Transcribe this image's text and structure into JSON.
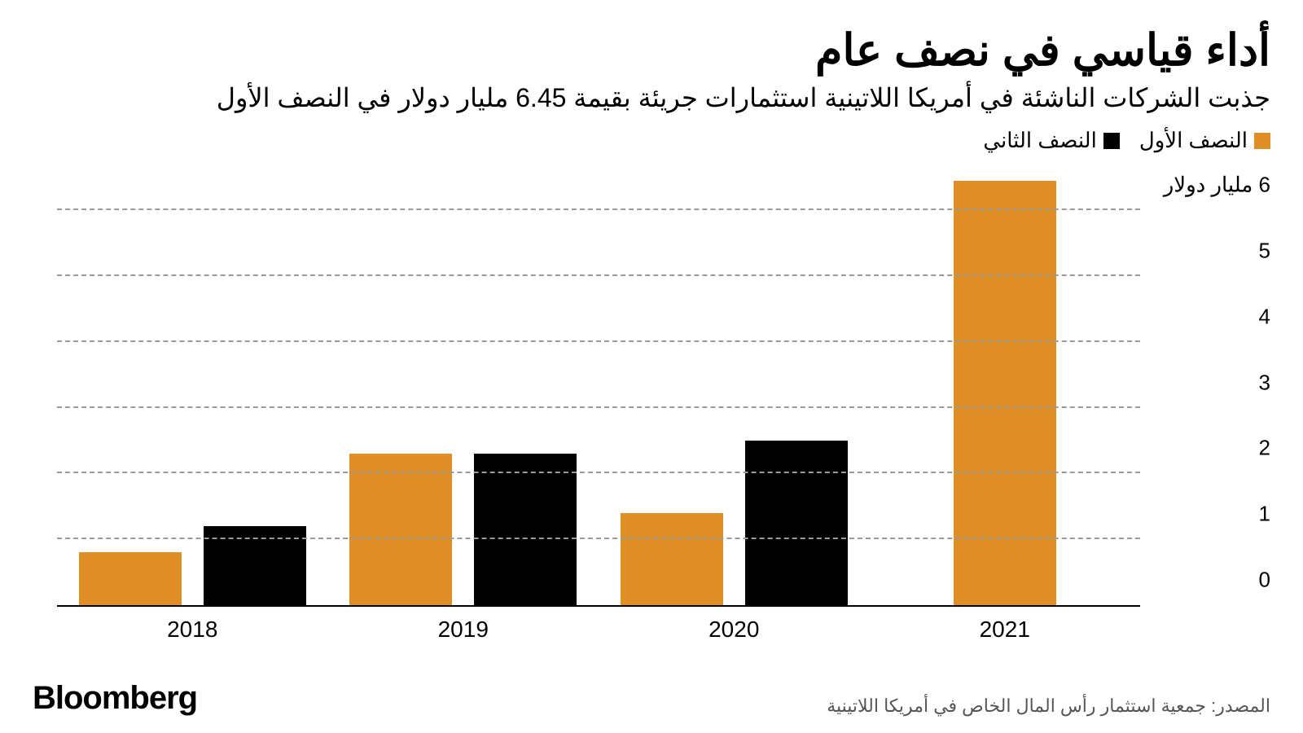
{
  "title": "أداء قياسي في نصف عام",
  "subtitle": "جذبت الشركات الناشئة في أمريكا اللاتينية استثمارات جريئة بقيمة 6.45 مليار دولار في النصف الأول",
  "legend": [
    {
      "label": "النصف الأول",
      "color": "#e08f27"
    },
    {
      "label": "النصف الثاني",
      "color": "#000000"
    }
  ],
  "chart": {
    "type": "bar",
    "categories": [
      "2018",
      "2019",
      "2020",
      "2021"
    ],
    "series": [
      {
        "name": "h1",
        "color": "#e08f27",
        "values": [
          0.8,
          2.3,
          1.4,
          6.45
        ]
      },
      {
        "name": "h2",
        "color": "#000000",
        "values": [
          1.2,
          2.3,
          2.5,
          null
        ]
      }
    ],
    "ylim": [
      0,
      6.5
    ],
    "yticks": [
      {
        "v": 0,
        "label": "0"
      },
      {
        "v": 1,
        "label": "1"
      },
      {
        "v": 2,
        "label": "2"
      },
      {
        "v": 3,
        "label": "3"
      },
      {
        "v": 4,
        "label": "4"
      },
      {
        "v": 5,
        "label": "5"
      },
      {
        "v": 6,
        "label": "6 مليار دولار"
      }
    ],
    "grid_color": "#9a9a9a",
    "background_color": "#ffffff",
    "bar_width_pct": 9.5,
    "group_gap_pct": 2.0,
    "label_fontsize": 28,
    "ytick_fontsize": 26,
    "legend_fontsize": 26
  },
  "brand": "Bloomberg",
  "source": "المصدر: جمعية استثمار رأس المال الخاص في أمريكا اللاتينية"
}
